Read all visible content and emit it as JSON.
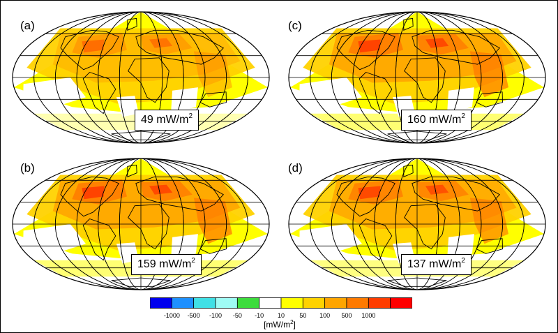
{
  "panels": [
    {
      "label": "(a)",
      "value": "49",
      "unit": "mW/m",
      "exp": "2",
      "intensity": 0.55
    },
    {
      "label": "(c)",
      "value": "160",
      "unit": "mW/m",
      "exp": "2",
      "intensity": 1.0
    },
    {
      "label": "(b)",
      "value": "159",
      "unit": "mW/m",
      "exp": "2",
      "intensity": 1.0
    },
    {
      "label": "(d)",
      "value": "137",
      "unit": "mW/m",
      "exp": "2",
      "intensity": 0.9
    }
  ],
  "colorbar": {
    "colors": [
      "#0000ee",
      "#1e90ff",
      "#40e0e6",
      "#9ffcf5",
      "#3ddc3d",
      "#ffffff",
      "#ffff00",
      "#ffd200",
      "#ffa500",
      "#ff7a00",
      "#ff3c00",
      "#ff0000"
    ],
    "ticks": [
      "-1000",
      "-500",
      "-100",
      "-50",
      "-10",
      "10",
      "50",
      "100",
      "500",
      "1000"
    ],
    "units_prefix": "[mW/m",
    "units_exp": "2",
    "units_suffix": "]"
  }
}
